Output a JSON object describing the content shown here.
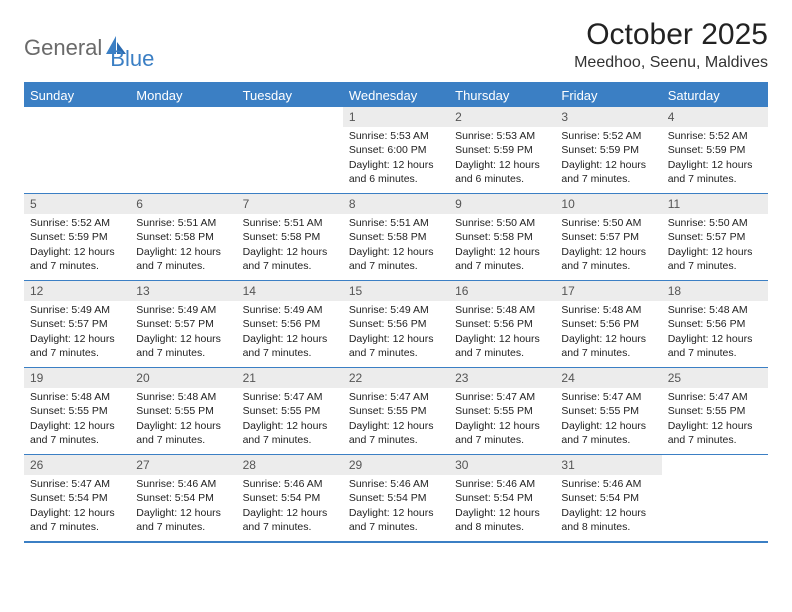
{
  "logo": {
    "part1": "General",
    "part2": "Blue"
  },
  "title": "October 2025",
  "location": "Meedhoo, Seenu, Maldives",
  "colors": {
    "accent": "#3b7fc4",
    "header_bg": "#3b7fc4",
    "header_text": "#ffffff",
    "daynum_bg": "#ececec",
    "daynum_text": "#555555",
    "body_text": "#1a1a1a",
    "logo_gray": "#6a6a6a",
    "logo_blue": "#3b7fc4"
  },
  "day_names": [
    "Sunday",
    "Monday",
    "Tuesday",
    "Wednesday",
    "Thursday",
    "Friday",
    "Saturday"
  ],
  "weeks": [
    [
      {
        "empty": true
      },
      {
        "empty": true
      },
      {
        "empty": true
      },
      {
        "n": "1",
        "sr": "Sunrise: 5:53 AM",
        "ss": "Sunset: 6:00 PM",
        "dl": "Daylight: 12 hours and 6 minutes."
      },
      {
        "n": "2",
        "sr": "Sunrise: 5:53 AM",
        "ss": "Sunset: 5:59 PM",
        "dl": "Daylight: 12 hours and 6 minutes."
      },
      {
        "n": "3",
        "sr": "Sunrise: 5:52 AM",
        "ss": "Sunset: 5:59 PM",
        "dl": "Daylight: 12 hours and 7 minutes."
      },
      {
        "n": "4",
        "sr": "Sunrise: 5:52 AM",
        "ss": "Sunset: 5:59 PM",
        "dl": "Daylight: 12 hours and 7 minutes."
      }
    ],
    [
      {
        "n": "5",
        "sr": "Sunrise: 5:52 AM",
        "ss": "Sunset: 5:59 PM",
        "dl": "Daylight: 12 hours and 7 minutes."
      },
      {
        "n": "6",
        "sr": "Sunrise: 5:51 AM",
        "ss": "Sunset: 5:58 PM",
        "dl": "Daylight: 12 hours and 7 minutes."
      },
      {
        "n": "7",
        "sr": "Sunrise: 5:51 AM",
        "ss": "Sunset: 5:58 PM",
        "dl": "Daylight: 12 hours and 7 minutes."
      },
      {
        "n": "8",
        "sr": "Sunrise: 5:51 AM",
        "ss": "Sunset: 5:58 PM",
        "dl": "Daylight: 12 hours and 7 minutes."
      },
      {
        "n": "9",
        "sr": "Sunrise: 5:50 AM",
        "ss": "Sunset: 5:58 PM",
        "dl": "Daylight: 12 hours and 7 minutes."
      },
      {
        "n": "10",
        "sr": "Sunrise: 5:50 AM",
        "ss": "Sunset: 5:57 PM",
        "dl": "Daylight: 12 hours and 7 minutes."
      },
      {
        "n": "11",
        "sr": "Sunrise: 5:50 AM",
        "ss": "Sunset: 5:57 PM",
        "dl": "Daylight: 12 hours and 7 minutes."
      }
    ],
    [
      {
        "n": "12",
        "sr": "Sunrise: 5:49 AM",
        "ss": "Sunset: 5:57 PM",
        "dl": "Daylight: 12 hours and 7 minutes."
      },
      {
        "n": "13",
        "sr": "Sunrise: 5:49 AM",
        "ss": "Sunset: 5:57 PM",
        "dl": "Daylight: 12 hours and 7 minutes."
      },
      {
        "n": "14",
        "sr": "Sunrise: 5:49 AM",
        "ss": "Sunset: 5:56 PM",
        "dl": "Daylight: 12 hours and 7 minutes."
      },
      {
        "n": "15",
        "sr": "Sunrise: 5:49 AM",
        "ss": "Sunset: 5:56 PM",
        "dl": "Daylight: 12 hours and 7 minutes."
      },
      {
        "n": "16",
        "sr": "Sunrise: 5:48 AM",
        "ss": "Sunset: 5:56 PM",
        "dl": "Daylight: 12 hours and 7 minutes."
      },
      {
        "n": "17",
        "sr": "Sunrise: 5:48 AM",
        "ss": "Sunset: 5:56 PM",
        "dl": "Daylight: 12 hours and 7 minutes."
      },
      {
        "n": "18",
        "sr": "Sunrise: 5:48 AM",
        "ss": "Sunset: 5:56 PM",
        "dl": "Daylight: 12 hours and 7 minutes."
      }
    ],
    [
      {
        "n": "19",
        "sr": "Sunrise: 5:48 AM",
        "ss": "Sunset: 5:55 PM",
        "dl": "Daylight: 12 hours and 7 minutes."
      },
      {
        "n": "20",
        "sr": "Sunrise: 5:48 AM",
        "ss": "Sunset: 5:55 PM",
        "dl": "Daylight: 12 hours and 7 minutes."
      },
      {
        "n": "21",
        "sr": "Sunrise: 5:47 AM",
        "ss": "Sunset: 5:55 PM",
        "dl": "Daylight: 12 hours and 7 minutes."
      },
      {
        "n": "22",
        "sr": "Sunrise: 5:47 AM",
        "ss": "Sunset: 5:55 PM",
        "dl": "Daylight: 12 hours and 7 minutes."
      },
      {
        "n": "23",
        "sr": "Sunrise: 5:47 AM",
        "ss": "Sunset: 5:55 PM",
        "dl": "Daylight: 12 hours and 7 minutes."
      },
      {
        "n": "24",
        "sr": "Sunrise: 5:47 AM",
        "ss": "Sunset: 5:55 PM",
        "dl": "Daylight: 12 hours and 7 minutes."
      },
      {
        "n": "25",
        "sr": "Sunrise: 5:47 AM",
        "ss": "Sunset: 5:55 PM",
        "dl": "Daylight: 12 hours and 7 minutes."
      }
    ],
    [
      {
        "n": "26",
        "sr": "Sunrise: 5:47 AM",
        "ss": "Sunset: 5:54 PM",
        "dl": "Daylight: 12 hours and 7 minutes."
      },
      {
        "n": "27",
        "sr": "Sunrise: 5:46 AM",
        "ss": "Sunset: 5:54 PM",
        "dl": "Daylight: 12 hours and 7 minutes."
      },
      {
        "n": "28",
        "sr": "Sunrise: 5:46 AM",
        "ss": "Sunset: 5:54 PM",
        "dl": "Daylight: 12 hours and 7 minutes."
      },
      {
        "n": "29",
        "sr": "Sunrise: 5:46 AM",
        "ss": "Sunset: 5:54 PM",
        "dl": "Daylight: 12 hours and 7 minutes."
      },
      {
        "n": "30",
        "sr": "Sunrise: 5:46 AM",
        "ss": "Sunset: 5:54 PM",
        "dl": "Daylight: 12 hours and 8 minutes."
      },
      {
        "n": "31",
        "sr": "Sunrise: 5:46 AM",
        "ss": "Sunset: 5:54 PM",
        "dl": "Daylight: 12 hours and 8 minutes."
      },
      {
        "empty": true
      }
    ]
  ]
}
